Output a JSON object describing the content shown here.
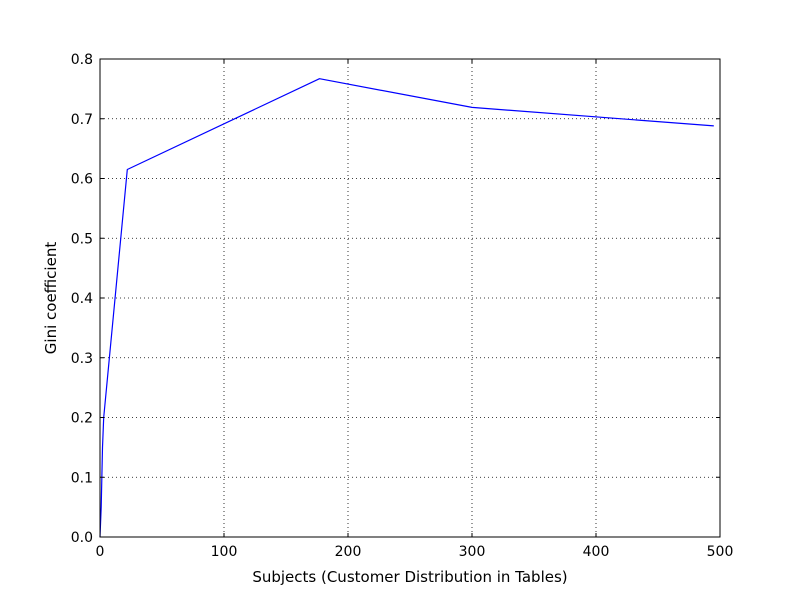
{
  "chart_data": {
    "type": "line",
    "xlabel": "Subjects (Customer Distribution in Tables)",
    "ylabel": "Gini coefficient",
    "xlim": [
      0,
      500
    ],
    "ylim": [
      0,
      0.8
    ],
    "xticks": [
      0,
      100,
      200,
      300,
      400,
      500
    ],
    "yticks": [
      0.0,
      0.1,
      0.2,
      0.3,
      0.4,
      0.5,
      0.6,
      0.7,
      0.8
    ],
    "xtick_labels": [
      "0",
      "100",
      "200",
      "300",
      "400",
      "500"
    ],
    "ytick_labels": [
      "0.0",
      "0.1",
      "0.2",
      "0.3",
      "0.4",
      "0.5",
      "0.6",
      "0.7",
      "0.8"
    ],
    "grid": true,
    "series": [
      {
        "color": "#0000ff",
        "x": [
          0,
          1,
          2,
          3,
          22,
          177,
          300,
          495
        ],
        "y": [
          0.0,
          0.05,
          0.15,
          0.2,
          0.615,
          0.767,
          0.719,
          0.688
        ]
      }
    ]
  }
}
